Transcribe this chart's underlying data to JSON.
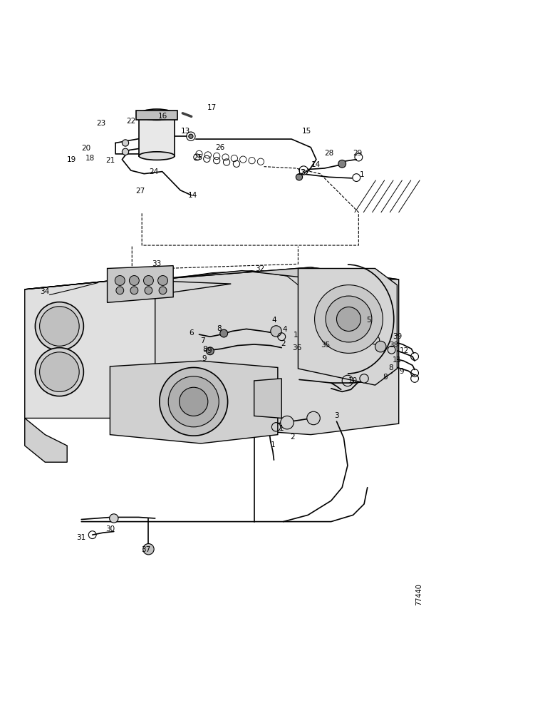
{
  "bg_color": "#ffffff",
  "line_color": "#000000",
  "fig_width": 7.72,
  "fig_height": 10.0,
  "watermark": "77440"
}
